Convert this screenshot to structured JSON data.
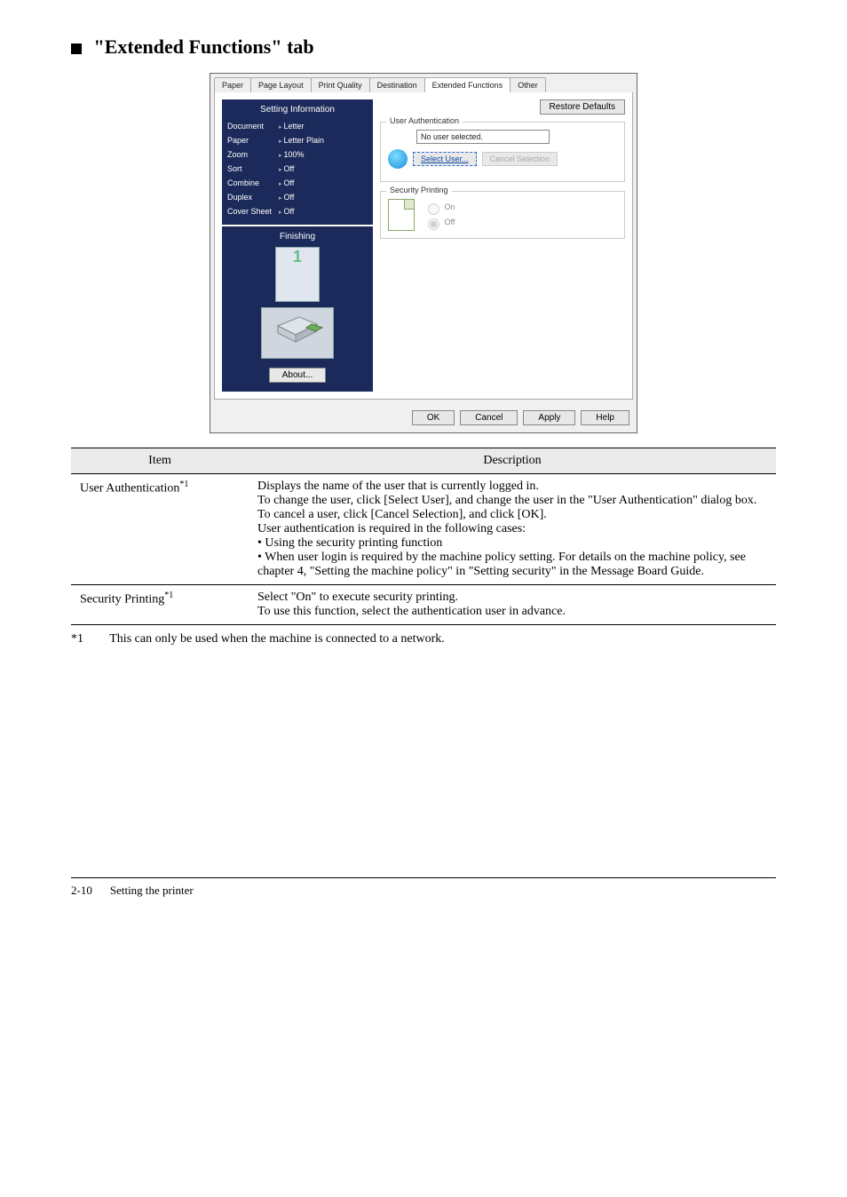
{
  "heading": "\"Extended Functions\" tab",
  "dialog": {
    "tabs": [
      "Paper",
      "Page Layout",
      "Print Quality",
      "Destination",
      "Extended Functions",
      "Other"
    ],
    "active_tab_index": 4,
    "restore_defaults_label": "Restore Defaults",
    "setting_info_title": "Setting Information",
    "settings": [
      {
        "k": "Document",
        "v": "Letter"
      },
      {
        "k": "Paper",
        "v": "Letter Plain"
      },
      {
        "k": "Zoom",
        "v": "100%"
      },
      {
        "k": "Sort",
        "v": "Off"
      },
      {
        "k": "Combine",
        "v": "Off"
      },
      {
        "k": "Duplex",
        "v": "Off"
      },
      {
        "k": "Cover Sheet",
        "v": "Off"
      }
    ],
    "finishing_label": "Finishing",
    "about_label": "About...",
    "user_auth": {
      "group_label": "User Authentication",
      "status_text": "No user selected.",
      "select_user_label": "Select User...",
      "cancel_selection_label": "Cancel Selection"
    },
    "sec_print": {
      "group_label": "Security Printing",
      "on_label": "On",
      "off_label": "Off",
      "selected": "off"
    },
    "buttons": {
      "ok": "OK",
      "cancel": "Cancel",
      "apply": "Apply",
      "help": "Help"
    }
  },
  "table": {
    "head_item": "Item",
    "head_desc": "Description",
    "rows": [
      {
        "item": "User Authentication",
        "sup": "*1",
        "desc_lines": [
          "Displays the name of the user that is currently logged in.",
          "To change the user, click [Select User], and change the user in the \"User Authentication\" dialog box.",
          "To cancel a user, click [Cancel Selection], and click [OK].",
          "User authentication is required in the following cases:",
          "• Using the security printing function",
          "• When user login is required by the machine policy setting.  For details on the machine policy, see chapter 4, \"Setting the machine policy\" in \"Setting security\" in the Message Board Guide."
        ]
      },
      {
        "item": "Security Printing",
        "sup": "*1",
        "desc_lines": [
          "Select \"On\" to execute security printing.",
          "To use this function, select the authentication user in advance."
        ]
      }
    ]
  },
  "footnote": {
    "mark": "*1",
    "text": "This can only be used when the machine is connected to a network."
  },
  "footer": {
    "page": "2-10",
    "label": "Setting the printer"
  },
  "colors": {
    "panel_blue": "#1b2a5a",
    "dialog_bg": "#f0f0f0",
    "table_header_bg": "#eaeaea"
  }
}
